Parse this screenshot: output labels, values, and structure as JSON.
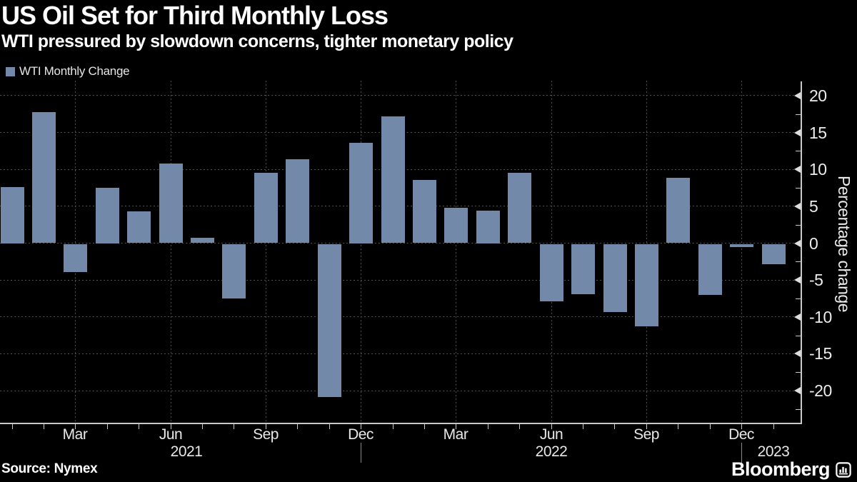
{
  "title": "US Oil Set for Third Monthly Loss",
  "subtitle": "WTI pressured by slowdown concerns, tighter monetary policy",
  "legend": {
    "label": "WTI Monthly Change",
    "swatch_color": "#7289a9"
  },
  "source": "Source: Nymex",
  "branding": {
    "wordmark": "Bloomberg",
    "icon": "bar-chart-logo-icon"
  },
  "colors": {
    "background": "#000000",
    "bar": "#7289a9",
    "grid": "#4f4f4f",
    "axis": "#c9c9c9",
    "text": "#e9e9e9"
  },
  "chart_data": {
    "type": "bar",
    "series_name": "WTI Monthly Change",
    "x": [
      "Jan 2021",
      "Feb 2021",
      "Mar 2021",
      "Apr 2021",
      "May 2021",
      "Jun 2021",
      "Jul 2021",
      "Aug 2021",
      "Sep 2021",
      "Oct 2021",
      "Nov 2021",
      "Dec 2021",
      "Jan 2022",
      "Feb 2022",
      "Mar 2022",
      "Apr 2022",
      "May 2022",
      "Jun 2022",
      "Jul 2022",
      "Aug 2022",
      "Sep 2022",
      "Oct 2022",
      "Nov 2022",
      "Dec 2022",
      "Jan 2023"
    ],
    "values": [
      7.6,
      17.8,
      -3.8,
      7.5,
      4.3,
      10.8,
      0.7,
      -7.4,
      9.5,
      11.4,
      -20.8,
      13.6,
      17.2,
      8.6,
      4.8,
      4.4,
      9.5,
      -7.8,
      -6.8,
      -9.2,
      -11.2,
      8.9,
      -6.9,
      -0.4,
      -2.8
    ],
    "title": "US Oil Set for Third Monthly Loss",
    "xlabel": "",
    "ylabel": "Percentage change",
    "ylim": [
      -22.5,
      22.5
    ],
    "yticks": [
      20,
      15,
      10,
      5,
      0,
      -5,
      -10,
      -15,
      -20
    ],
    "y_minor_step": 2.5,
    "grid": "dashed, horizontal at major yticks and vertical at quarter months",
    "legend_position": "top-left",
    "x_tick_labels": [
      {
        "text": "Mar",
        "index": 2
      },
      {
        "text": "Jun",
        "index": 5
      },
      {
        "text": "Sep",
        "index": 8
      },
      {
        "text": "Dec",
        "index": 11
      },
      {
        "text": "Mar",
        "index": 14
      },
      {
        "text": "Jun",
        "index": 17
      },
      {
        "text": "Sep",
        "index": 20
      },
      {
        "text": "Dec",
        "index": 23
      }
    ],
    "year_labels": [
      {
        "text": "2021",
        "index": 5.5
      },
      {
        "text": "2022",
        "index": 17
      },
      {
        "text": "2023",
        "index": 24
      }
    ],
    "year_divider_indices": [
      11,
      23
    ],
    "bar_color": "#7289a9"
  }
}
